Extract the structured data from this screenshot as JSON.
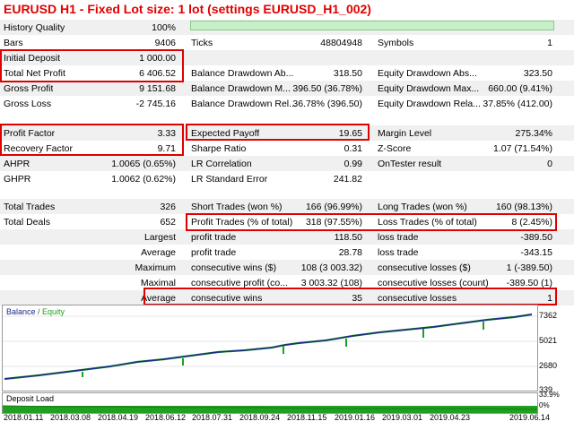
{
  "title": "EURUSD H1 - Fixed Lot size: 1 lot (settings EURUSD_H1_002)",
  "history_quality": {
    "label": "History Quality",
    "value": "100%"
  },
  "row_bars": [
    {
      "label": "Bars",
      "value": "9406"
    },
    {
      "label": "Ticks",
      "value": "48804948"
    },
    {
      "label": "Symbols",
      "value": "1"
    }
  ],
  "row_deposit": [
    {
      "label": "Initial Deposit",
      "value": "1 000.00"
    }
  ],
  "row_netprofit": [
    {
      "label": "Total Net Profit",
      "value": "6 406.52"
    },
    {
      "label": "Balance Drawdown Ab...",
      "value": "318.50"
    },
    {
      "label": "Equity Drawdown Abs...",
      "value": "323.50"
    }
  ],
  "row_grossprofit": [
    {
      "label": "Gross Profit",
      "value": "9 151.68"
    },
    {
      "label": "Balance Drawdown M...",
      "value": "396.50 (36.78%)"
    },
    {
      "label": "Equity Drawdown Max...",
      "value": "660.00 (9.41%)"
    }
  ],
  "row_grossloss": [
    {
      "label": "Gross Loss",
      "value": "-2 745.16"
    },
    {
      "label": "Balance Drawdown Rel...",
      "value": "36.78% (396.50)"
    },
    {
      "label": "Equity Drawdown Rela...",
      "value": "37.85% (412.00)"
    }
  ],
  "row_pf": [
    {
      "label": "Profit Factor",
      "value": "3.33"
    },
    {
      "label": "Expected Payoff",
      "value": "19.65"
    },
    {
      "label": "Margin Level",
      "value": "275.34%"
    }
  ],
  "row_rf": [
    {
      "label": "Recovery Factor",
      "value": "9.71"
    },
    {
      "label": "Sharpe Ratio",
      "value": "0.31"
    },
    {
      "label": "Z-Score",
      "value": "1.07 (71.54%)"
    }
  ],
  "row_ahpr": [
    {
      "label": "AHPR",
      "value": "1.0065 (0.65%)"
    },
    {
      "label": "LR Correlation",
      "value": "0.99"
    },
    {
      "label": "OnTester result",
      "value": "0"
    }
  ],
  "row_ghpr": [
    {
      "label": "GHPR",
      "value": "1.0062 (0.62%)"
    },
    {
      "label": "LR Standard Error",
      "value": "241.82"
    }
  ],
  "row_trades": [
    {
      "label": "Total Trades",
      "value": "326"
    },
    {
      "label": "Short Trades (won %)",
      "value": "166 (96.99%)"
    },
    {
      "label": "Long Trades (won %)",
      "value": "160 (98.13%)"
    }
  ],
  "row_deals": [
    {
      "label": "Total Deals",
      "value": "652"
    },
    {
      "label": "Profit Trades (% of total)",
      "value": "318 (97.55%)"
    },
    {
      "label": "Loss Trades (% of total)",
      "value": "8 (2.45%)"
    }
  ],
  "row_largest": [
    {
      "label": "Largest"
    },
    {
      "label": "profit trade",
      "value": "118.50"
    },
    {
      "label": "loss trade",
      "value": "-389.50"
    }
  ],
  "row_average": [
    {
      "label": "Average"
    },
    {
      "label": "profit trade",
      "value": "28.78"
    },
    {
      "label": "loss trade",
      "value": "-343.15"
    }
  ],
  "row_maximum": [
    {
      "label": "Maximum"
    },
    {
      "label": "consecutive wins ($)",
      "value": "108 (3 003.32)"
    },
    {
      "label": "consecutive losses ($)",
      "value": "1 (-389.50)"
    }
  ],
  "row_maximal": [
    {
      "label": "Maximal"
    },
    {
      "label": "consecutive profit (co...",
      "value": "3 003.32 (108)"
    },
    {
      "label": "consecutive losses (count)",
      "value": "-389.50 (1)"
    }
  ],
  "row_avg2": [
    {
      "label": "Average"
    },
    {
      "label": "consecutive wins",
      "value": "35"
    },
    {
      "label": "consecutive losses",
      "value": "1"
    }
  ],
  "chart": {
    "legend_balance": "Balance",
    "legend_sep": " / ",
    "legend_equity": "Equity",
    "y_ticks": [
      "7362",
      "5021",
      "2680",
      "339"
    ],
    "deposit_load": "Deposit Load",
    "load_ticks": [
      "33.9%",
      "0%"
    ],
    "x_ticks": [
      "2018.01.11",
      "2018.03.08",
      "2018.04.19",
      "2018.06.12",
      "2018.07.31",
      "2018.09.24",
      "2018.11.15",
      "2019.01.16",
      "2019.03.01",
      "2019.04.23",
      "2019.06.14"
    ],
    "colors": {
      "balance": "#1a2a8c",
      "equity": "#1fa01f",
      "load": "#1fa01f",
      "highlight": "#e00000"
    }
  }
}
